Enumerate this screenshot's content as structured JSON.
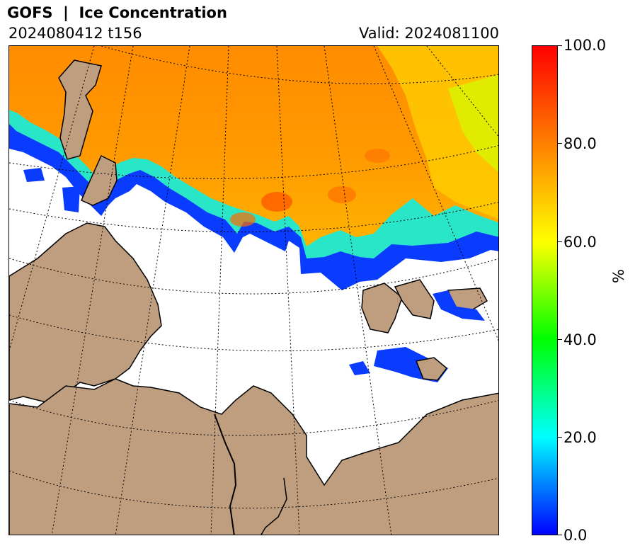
{
  "header": {
    "title": "GOFS  |  Ice Concentration",
    "run": "2024080412 t156",
    "valid": "Valid: 2024081100"
  },
  "colorbar": {
    "unit": "%",
    "min": 0.0,
    "max": 100.0,
    "ticks": [
      "0.0",
      "20.0",
      "40.0",
      "60.0",
      "80.0",
      "100.0"
    ],
    "stops": [
      "#0000ff",
      "#00ffff",
      "#00ff00",
      "#ffff00",
      "#ff8000",
      "#ff0000"
    ]
  },
  "map": {
    "land_color": "#bf9e80",
    "ocean_color": "#ffffff",
    "graticule": "dotted",
    "ice_edge_color": "#0000ff",
    "high_ice_color": "#ff7f00"
  }
}
